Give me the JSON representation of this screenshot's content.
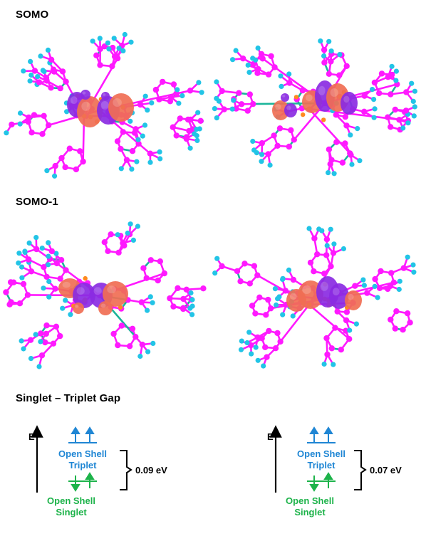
{
  "titles": {
    "somo": "SOMO",
    "somo1": "SOMO-1",
    "gap": "Singlet – Triplet Gap"
  },
  "energy_diagrams": [
    {
      "axis_label": "E",
      "upper_line1": "Open Shell",
      "upper_line2": "Triplet",
      "lower_line1": "Open Shell",
      "lower_line2": "Singlet",
      "gap_value": "0.09 eV"
    },
    {
      "axis_label": "E",
      "upper_line1": "Open Shell",
      "upper_line2": "Triplet",
      "lower_line1": "Open Shell",
      "lower_line2": "Singlet",
      "gap_value": "0.07 eV"
    }
  ],
  "colors": {
    "bond": "#ff19ff",
    "atom_carbon": "#ff19ff",
    "atom_hydrogen": "#22c4e6",
    "atom_metal": "#ff8a1e",
    "bond_alt": "#1bb59a",
    "lobe_positive": "#f06e54",
    "lobe_negative": "#8a2be2",
    "triplet_color": "#1f86d4",
    "singlet_color": "#1db34a"
  },
  "molecules": [
    {
      "id": "somo-left",
      "panel": "SOMO"
    },
    {
      "id": "somo-right",
      "panel": "SOMO"
    },
    {
      "id": "somo1-left",
      "panel": "SOMO-1"
    },
    {
      "id": "somo1-right",
      "panel": "SOMO-1"
    }
  ]
}
